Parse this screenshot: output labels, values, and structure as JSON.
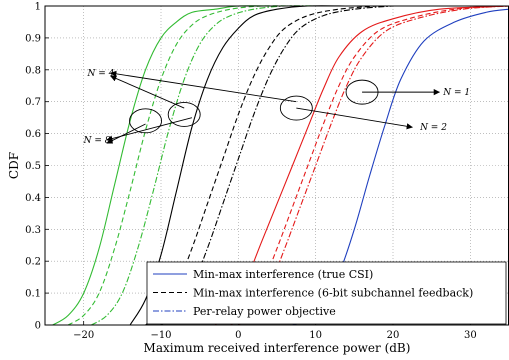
{
  "chart_data": {
    "type": "line",
    "xlabel": "Maximum received interference power (dB)",
    "ylabel": "CDF",
    "xlim": [
      -25,
      35
    ],
    "ylim": [
      0,
      1
    ],
    "xticks": [
      -20,
      -10,
      0,
      10,
      20,
      30
    ],
    "yticks": [
      0,
      0.1,
      0.2,
      0.3,
      0.4,
      0.5,
      0.6,
      0.7,
      0.8,
      0.9,
      1
    ],
    "grid": true,
    "legend_position": "bottom-right",
    "legend": [
      {
        "label": "Min-max interference (true CSI)",
        "style": "solid"
      },
      {
        "label": "Min-max interference (6-bit subchannel feedback)",
        "style": "dashed"
      },
      {
        "label": "Per-relay power objective",
        "style": "dashdot"
      }
    ],
    "annotations": [
      {
        "text": "N = 1",
        "x": 26.5,
        "y": 0.73
      },
      {
        "text": "N = 2",
        "x": 23.5,
        "y": 0.62
      },
      {
        "text": "N = 4",
        "x": -19.5,
        "y": 0.79
      },
      {
        "text": "N = 8",
        "x": -20,
        "y": 0.58
      }
    ],
    "ellipses": [
      {
        "cx": 16,
        "cy": 0.73
      },
      {
        "cx": 7.5,
        "cy": 0.68
      },
      {
        "cx": -7,
        "cy": 0.66
      },
      {
        "cx": -12,
        "cy": 0.64
      }
    ],
    "series": [
      {
        "group": "N=1",
        "style": "solid",
        "color": "#1f3fbf",
        "x": [
          7,
          9,
          11,
          13,
          15,
          17,
          19,
          21,
          24,
          28,
          32,
          35
        ],
        "y": [
          0,
          0.02,
          0.07,
          0.16,
          0.3,
          0.47,
          0.63,
          0.77,
          0.89,
          0.95,
          0.98,
          0.99
        ]
      },
      {
        "group": "N=2",
        "style": "solid",
        "color": "#e41a1a",
        "x": [
          -3,
          -1,
          1,
          3,
          5,
          7,
          9,
          11,
          13,
          16,
          20,
          26,
          35
        ],
        "y": [
          0,
          0.05,
          0.14,
          0.26,
          0.38,
          0.5,
          0.62,
          0.74,
          0.84,
          0.92,
          0.96,
          0.99,
          1
        ]
      },
      {
        "group": "N=2",
        "style": "dashed",
        "color": "#e41a1a",
        "x": [
          -1,
          1,
          3,
          5,
          7,
          9,
          11,
          13,
          15,
          18,
          22,
          28,
          35
        ],
        "y": [
          0,
          0.04,
          0.12,
          0.24,
          0.37,
          0.5,
          0.63,
          0.75,
          0.84,
          0.92,
          0.96,
          0.99,
          1
        ]
      },
      {
        "group": "N=2",
        "style": "dashdot",
        "color": "#e41a1a",
        "x": [
          0,
          2,
          4,
          6,
          8,
          10,
          12,
          14,
          16,
          19,
          23,
          29,
          35
        ],
        "y": [
          0,
          0.04,
          0.12,
          0.24,
          0.37,
          0.5,
          0.63,
          0.75,
          0.84,
          0.92,
          0.96,
          0.99,
          1
        ]
      },
      {
        "group": "N=4",
        "style": "solid",
        "color": "#000000",
        "x": [
          -14,
          -12,
          -10,
          -8,
          -6,
          -4,
          -2,
          0,
          2,
          5,
          9,
          14
        ],
        "y": [
          0,
          0.08,
          0.22,
          0.42,
          0.62,
          0.77,
          0.87,
          0.93,
          0.97,
          0.99,
          1,
          1
        ]
      },
      {
        "group": "N=4",
        "style": "dashed",
        "color": "#000000",
        "x": [
          -12,
          -10,
          -8,
          -6,
          -4,
          -2,
          0,
          2,
          4,
          6,
          9,
          13,
          18
        ],
        "y": [
          0,
          0.04,
          0.12,
          0.24,
          0.38,
          0.52,
          0.66,
          0.78,
          0.87,
          0.93,
          0.97,
          0.99,
          1
        ]
      },
      {
        "group": "N=4",
        "style": "dashdot",
        "color": "#000000",
        "x": [
          -10,
          -8,
          -6,
          -4,
          -2,
          0,
          2,
          4,
          6,
          8,
          11,
          15,
          20
        ],
        "y": [
          0,
          0.04,
          0.12,
          0.24,
          0.38,
          0.52,
          0.66,
          0.78,
          0.87,
          0.93,
          0.97,
          0.99,
          1
        ]
      },
      {
        "group": "N=8",
        "style": "solid",
        "color": "#33bb33",
        "x": [
          -24,
          -22,
          -20,
          -18,
          -16,
          -14,
          -12,
          -10,
          -8,
          -6,
          -3,
          0,
          4
        ],
        "y": [
          0,
          0.03,
          0.1,
          0.24,
          0.44,
          0.64,
          0.8,
          0.9,
          0.95,
          0.98,
          0.99,
          1,
          1
        ]
      },
      {
        "group": "N=8",
        "style": "dashed",
        "color": "#33bb33",
        "x": [
          -22,
          -20,
          -18,
          -16,
          -14,
          -12,
          -10,
          -8,
          -6,
          -4,
          -1,
          3,
          7
        ],
        "y": [
          0,
          0.03,
          0.1,
          0.24,
          0.42,
          0.61,
          0.77,
          0.88,
          0.94,
          0.97,
          0.99,
          1,
          1
        ]
      },
      {
        "group": "N=8",
        "style": "dashdot",
        "color": "#33bb33",
        "x": [
          -19,
          -17,
          -15,
          -13,
          -11,
          -9,
          -7,
          -5,
          -3,
          -1,
          2,
          6,
          10
        ],
        "y": [
          0,
          0.03,
          0.1,
          0.24,
          0.42,
          0.61,
          0.77,
          0.88,
          0.94,
          0.97,
          0.99,
          1,
          1
        ]
      }
    ]
  }
}
